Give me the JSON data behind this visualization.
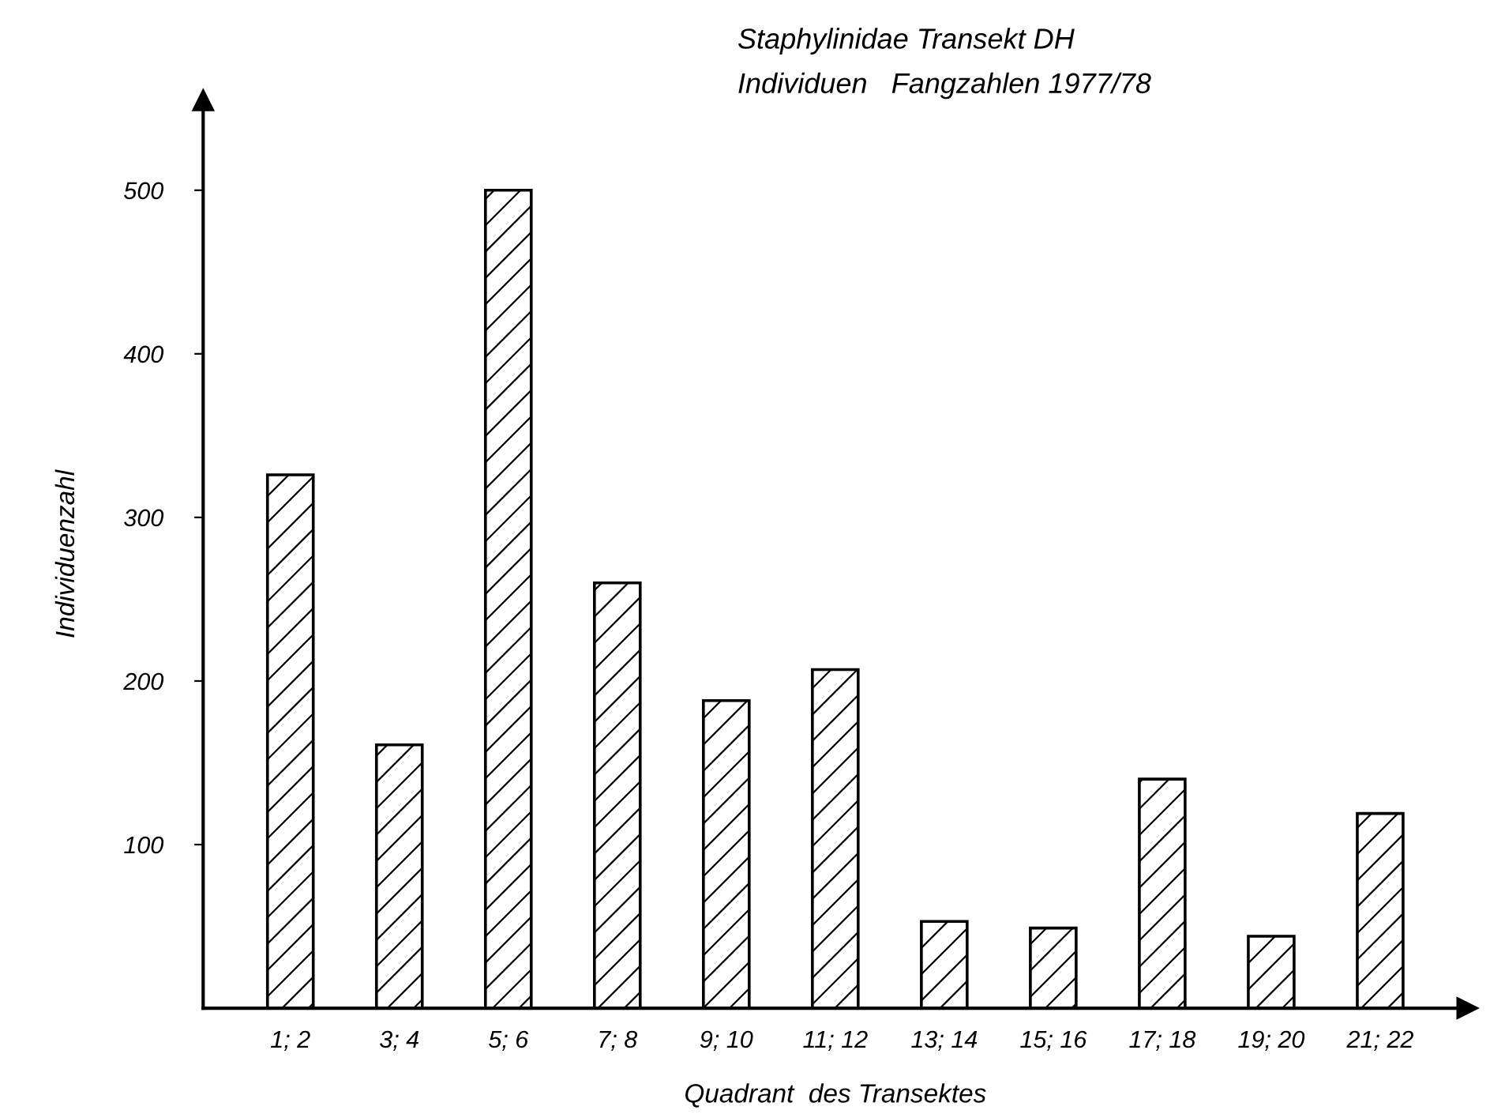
{
  "chart_data": {
    "type": "bar",
    "title": "Staphylinidae Transekt DH",
    "subtitle": "Individuen   Fangzahlen 1977/78",
    "xlabel": "Quadrant  des Transektes",
    "ylabel": "Individuenzahl",
    "categories": [
      "1; 2",
      "3; 4",
      "5; 6",
      "7; 8",
      "9; 10",
      "11; 12",
      "13; 14",
      "15; 16",
      "17; 18",
      "19; 20",
      "21; 22"
    ],
    "values": [
      326,
      161,
      500,
      260,
      188,
      207,
      53,
      49,
      140,
      44,
      119
    ],
    "color": "#000000",
    "ylim": [
      0,
      555
    ],
    "yticks": [
      100,
      200,
      300,
      400,
      500
    ],
    "grid": false,
    "legend": false
  }
}
